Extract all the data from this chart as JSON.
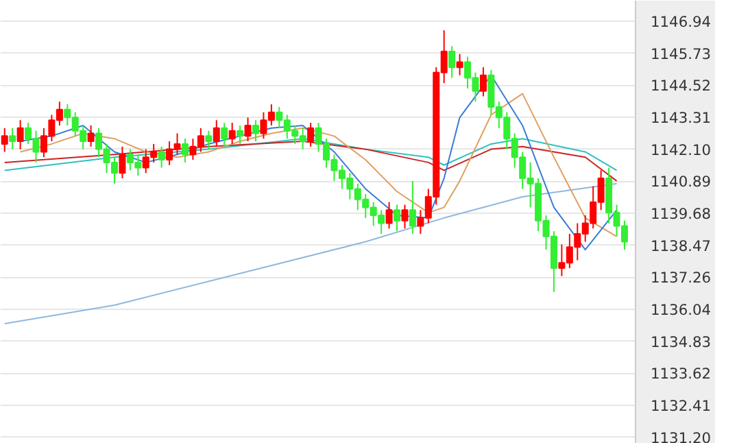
{
  "chart_data": {
    "type": "candlestick",
    "categories": [
      null,
      null,
      null,
      null,
      null,
      null,
      null,
      null,
      null,
      null,
      null,
      null,
      null,
      null,
      null,
      null,
      null,
      null,
      null,
      null,
      null,
      null,
      null,
      null,
      null,
      null,
      null,
      null,
      null,
      null,
      null,
      null,
      null,
      null,
      null,
      null,
      null,
      null,
      null,
      null,
      null,
      null,
      null,
      null,
      null,
      null,
      null,
      null,
      null,
      null,
      null,
      null,
      null,
      null,
      null,
      null,
      null,
      null,
      null,
      null,
      null,
      null,
      null,
      null,
      null,
      null,
      null,
      null,
      null,
      null,
      null,
      null,
      null,
      null,
      null,
      null,
      null,
      null,
      null,
      null
    ],
    "ohlc": [
      [
        1142.3,
        1142.9,
        1142.0,
        1142.6
      ],
      [
        1142.6,
        1142.9,
        1142.1,
        1142.4
      ],
      [
        1142.4,
        1143.2,
        1142.1,
        1142.9
      ],
      [
        1142.9,
        1143.1,
        1142.3,
        1142.5
      ],
      [
        1142.5,
        1142.8,
        1141.6,
        1142.0
      ],
      [
        1142.0,
        1142.9,
        1141.8,
        1142.6
      ],
      [
        1142.6,
        1143.4,
        1142.4,
        1143.2
      ],
      [
        1143.2,
        1143.9,
        1143.0,
        1143.6
      ],
      [
        1143.6,
        1143.8,
        1143.0,
        1143.3
      ],
      [
        1143.3,
        1143.5,
        1142.6,
        1142.8
      ],
      [
        1142.8,
        1143.0,
        1142.1,
        1142.4
      ],
      [
        1142.4,
        1143.0,
        1142.2,
        1142.7
      ],
      [
        1142.7,
        1142.9,
        1141.8,
        1142.1
      ],
      [
        1142.1,
        1142.3,
        1141.2,
        1141.6
      ],
      [
        1141.6,
        1141.8,
        1140.8,
        1141.2
      ],
      [
        1141.2,
        1142.2,
        1141.0,
        1141.9
      ],
      [
        1141.9,
        1142.1,
        1141.3,
        1141.6
      ],
      [
        1141.6,
        1141.9,
        1141.1,
        1141.4
      ],
      [
        1141.4,
        1142.1,
        1141.2,
        1141.8
      ],
      [
        1141.8,
        1142.3,
        1141.6,
        1142.0
      ],
      [
        1142.0,
        1142.2,
        1141.4,
        1141.7
      ],
      [
        1141.7,
        1142.4,
        1141.5,
        1142.1
      ],
      [
        1142.1,
        1142.7,
        1141.9,
        1142.3
      ],
      [
        1142.3,
        1142.5,
        1141.6,
        1141.9
      ],
      [
        1141.9,
        1142.5,
        1141.7,
        1142.2
      ],
      [
        1142.2,
        1142.9,
        1142.0,
        1142.6
      ],
      [
        1142.6,
        1142.8,
        1142.1,
        1142.4
      ],
      [
        1142.4,
        1143.2,
        1142.2,
        1142.9
      ],
      [
        1142.9,
        1143.1,
        1142.2,
        1142.5
      ],
      [
        1142.5,
        1143.1,
        1142.3,
        1142.8
      ],
      [
        1142.8,
        1143.0,
        1142.3,
        1142.6
      ],
      [
        1142.6,
        1143.3,
        1142.4,
        1143.0
      ],
      [
        1143.0,
        1143.2,
        1142.4,
        1142.7
      ],
      [
        1142.7,
        1143.5,
        1142.5,
        1143.2
      ],
      [
        1143.2,
        1143.8,
        1143.0,
        1143.5
      ],
      [
        1143.5,
        1143.7,
        1142.9,
        1143.2
      ],
      [
        1143.2,
        1143.4,
        1142.5,
        1142.8
      ],
      [
        1142.8,
        1143.0,
        1142.3,
        1142.6
      ],
      [
        1142.6,
        1142.9,
        1142.1,
        1142.4
      ],
      [
        1142.4,
        1143.1,
        1142.2,
        1142.9
      ],
      [
        1142.9,
        1143.1,
        1142.0,
        1142.3
      ],
      [
        1142.3,
        1142.5,
        1141.4,
        1141.7
      ],
      [
        1141.7,
        1141.9,
        1140.9,
        1141.3
      ],
      [
        1141.3,
        1141.5,
        1140.6,
        1141.0
      ],
      [
        1141.0,
        1141.2,
        1140.2,
        1140.6
      ],
      [
        1140.6,
        1140.8,
        1139.8,
        1140.2
      ],
      [
        1140.2,
        1140.4,
        1139.5,
        1139.9
      ],
      [
        1139.9,
        1140.1,
        1139.2,
        1139.6
      ],
      [
        1139.6,
        1139.8,
        1138.9,
        1139.3
      ],
      [
        1139.3,
        1140.1,
        1139.1,
        1139.8
      ],
      [
        1139.8,
        1140.0,
        1139.0,
        1139.4
      ],
      [
        1139.4,
        1140.0,
        1139.1,
        1139.8
      ],
      [
        1139.8,
        1140.9,
        1138.9,
        1139.2
      ],
      [
        1139.2,
        1139.8,
        1138.9,
        1139.5
      ],
      [
        1139.5,
        1140.6,
        1139.3,
        1140.3
      ],
      [
        1140.3,
        1145.2,
        1140.0,
        1145.0
      ],
      [
        1145.0,
        1146.6,
        1144.6,
        1145.8
      ],
      [
        1145.8,
        1146.0,
        1144.8,
        1145.2
      ],
      [
        1145.2,
        1145.7,
        1144.9,
        1145.4
      ],
      [
        1145.4,
        1145.6,
        1144.4,
        1144.8
      ],
      [
        1144.8,
        1145.0,
        1143.9,
        1144.3
      ],
      [
        1144.3,
        1145.2,
        1144.1,
        1144.9
      ],
      [
        1144.9,
        1145.1,
        1143.4,
        1143.7
      ],
      [
        1143.7,
        1143.9,
        1142.9,
        1143.3
      ],
      [
        1143.3,
        1143.5,
        1142.1,
        1142.5
      ],
      [
        1142.5,
        1142.7,
        1141.4,
        1141.8
      ],
      [
        1141.8,
        1142.0,
        1140.6,
        1141.0
      ],
      [
        1141.0,
        1141.6,
        1139.9,
        1140.8
      ],
      [
        1140.8,
        1141.0,
        1139.0,
        1139.4
      ],
      [
        1139.4,
        1139.6,
        1138.3,
        1138.8
      ],
      [
        1138.8,
        1139.0,
        1136.7,
        1137.6
      ],
      [
        1137.6,
        1138.5,
        1137.3,
        1137.8
      ],
      [
        1137.8,
        1138.9,
        1137.6,
        1138.4
      ],
      [
        1138.4,
        1139.3,
        1137.9,
        1138.9
      ],
      [
        1138.9,
        1139.6,
        1138.6,
        1139.3
      ],
      [
        1139.3,
        1140.7,
        1139.1,
        1140.1
      ],
      [
        1140.1,
        1141.3,
        1139.8,
        1141.0
      ],
      [
        1141.0,
        1141.4,
        1139.3,
        1139.7
      ],
      [
        1139.7,
        1140.0,
        1138.8,
        1139.2
      ],
      [
        1139.2,
        1139.4,
        1138.3,
        1138.6
      ]
    ],
    "colors": [
      "#ff0000",
      "#33ee33",
      "#ff0000",
      "#33ee33",
      "#33ee33",
      "#ff0000",
      "#ff0000",
      "#ff0000",
      "#33ee33",
      "#33ee33",
      "#33ee33",
      "#ff0000",
      "#33ee33",
      "#33ee33",
      "#33ee33",
      "#ff0000",
      "#33ee33",
      "#33ee33",
      "#ff0000",
      "#ff0000",
      "#33ee33",
      "#ff0000",
      "#ff0000",
      "#33ee33",
      "#ff0000",
      "#ff0000",
      "#33ee33",
      "#ff0000",
      "#33ee33",
      "#ff0000",
      "#33ee33",
      "#ff0000",
      "#33ee33",
      "#ff0000",
      "#ff0000",
      "#33ee33",
      "#33ee33",
      "#33ee33",
      "#33ee33",
      "#ff0000",
      "#33ee33",
      "#33ee33",
      "#33ee33",
      "#33ee33",
      "#33ee33",
      "#33ee33",
      "#33ee33",
      "#33ee33",
      "#33ee33",
      "#ff0000",
      "#33ee33",
      "#ff0000",
      "#33ee33",
      "#ff0000",
      "#ff0000",
      "#ff0000",
      "#ff0000",
      "#33ee33",
      "#ff0000",
      "#33ee33",
      "#33ee33",
      "#ff0000",
      "#33ee33",
      "#33ee33",
      "#33ee33",
      "#33ee33",
      "#33ee33",
      "#33ee33",
      "#33ee33",
      "#33ee33",
      "#33ee33",
      "#ff0000",
      "#ff0000",
      "#ff0000",
      "#ff0000",
      "#ff0000",
      "#ff0000",
      "#33ee33",
      "#33ee33",
      "#33ee33"
    ],
    "ylim": [
      1130.96,
      1147.72
    ],
    "yticks": [
      {
        "value": 1131.2,
        "label": "1131.20"
      },
      {
        "value": 1132.41,
        "label": "1132.41"
      },
      {
        "value": 1133.62,
        "label": "1133.62"
      },
      {
        "value": 1134.83,
        "label": "1134.83"
      },
      {
        "value": 1136.04,
        "label": "1136.04"
      },
      {
        "value": 1137.26,
        "label": "1137.26"
      },
      {
        "value": 1138.47,
        "label": "1138.47"
      },
      {
        "value": 1139.68,
        "label": "1139.68"
      },
      {
        "value": 1140.89,
        "label": "1140.89"
      },
      {
        "value": 1142.1,
        "label": "1142.10"
      },
      {
        "value": 1143.31,
        "label": "1143.31"
      },
      {
        "value": 1144.52,
        "label": "1144.52"
      },
      {
        "value": 1145.73,
        "label": "1145.73"
      },
      {
        "value": 1146.94,
        "label": "1146.94"
      }
    ],
    "grid": "y",
    "tick_labels": "y",
    "series": [
      {
        "type": "line",
        "color": "#8fb8e0",
        "values": [
          1135.5,
          null,
          null,
          null,
          null,
          null,
          null,
          null,
          null,
          null,
          null,
          null,
          null,
          null,
          1136.2,
          null,
          null,
          null,
          null,
          null,
          null,
          null,
          null,
          null,
          null,
          null,
          null,
          null,
          null,
          null,
          1137.4,
          null,
          null,
          null,
          null,
          null,
          null,
          null,
          null,
          null,
          null,
          null,
          null,
          null,
          null,
          null,
          1138.6,
          null,
          null,
          null,
          null,
          null,
          null,
          null,
          null,
          null,
          1139.5,
          null,
          null,
          null,
          null,
          null,
          null,
          null,
          null,
          null,
          1140.3,
          null,
          null,
          null,
          null,
          null,
          null,
          null,
          null,
          null,
          null,
          null,
          1140.8,
          null
        ]
      },
      {
        "type": "line",
        "color": "#2ec0c0",
        "values": [
          1141.3,
          null,
          null,
          null,
          null,
          null,
          null,
          null,
          null,
          null,
          null,
          null,
          null,
          null,
          1141.8,
          null,
          null,
          null,
          null,
          null,
          null,
          null,
          null,
          null,
          null,
          null,
          1142.1,
          null,
          null,
          null,
          null,
          null,
          null,
          null,
          null,
          null,
          null,
          null,
          1142.5,
          null,
          null,
          null,
          null,
          null,
          null,
          null,
          1142.1,
          null,
          null,
          null,
          null,
          null,
          null,
          null,
          1141.8,
          null,
          1141.5,
          null,
          null,
          null,
          null,
          null,
          1142.3,
          null,
          null,
          null,
          1142.5,
          null,
          null,
          null,
          null,
          null,
          null,
          null,
          1142.0,
          null,
          null,
          null,
          1141.3,
          null
        ]
      },
      {
        "type": "line",
        "color": "#cc2222",
        "values": [
          1141.6,
          null,
          null,
          null,
          null,
          null,
          null,
          null,
          null,
          null,
          null,
          null,
          null,
          null,
          1141.9,
          null,
          null,
          null,
          null,
          null,
          null,
          null,
          null,
          null,
          null,
          null,
          1142.2,
          null,
          null,
          null,
          null,
          null,
          null,
          null,
          null,
          null,
          null,
          null,
          1142.4,
          null,
          null,
          null,
          null,
          null,
          null,
          null,
          1142.1,
          null,
          null,
          null,
          null,
          null,
          null,
          null,
          1141.6,
          null,
          1141.3,
          null,
          null,
          null,
          null,
          null,
          1142.1,
          null,
          null,
          null,
          1142.2,
          null,
          null,
          null,
          null,
          null,
          null,
          null,
          1141.8,
          null,
          null,
          null,
          1140.9,
          null
        ]
      },
      {
        "type": "line",
        "color": "#e0a060",
        "values": [
          null,
          null,
          1142.0,
          null,
          null,
          null,
          1142.3,
          null,
          null,
          null,
          1142.7,
          null,
          null,
          null,
          1142.5,
          null,
          null,
          null,
          1142.0,
          null,
          null,
          null,
          1141.8,
          null,
          null,
          null,
          1142.0,
          null,
          null,
          null,
          1142.4,
          null,
          null,
          null,
          1142.7,
          null,
          null,
          null,
          1142.9,
          null,
          null,
          null,
          1142.6,
          null,
          null,
          null,
          1141.7,
          null,
          null,
          null,
          1140.5,
          null,
          null,
          null,
          1139.7,
          null,
          1139.9,
          null,
          1140.9,
          null,
          null,
          null,
          1143.4,
          null,
          null,
          null,
          1144.2,
          null,
          null,
          null,
          1141.8,
          null,
          null,
          null,
          1139.5,
          null,
          null,
          null,
          1138.8,
          null
        ]
      },
      {
        "type": "line",
        "color": "#3a7bd5",
        "values": [
          null,
          null,
          1142.4,
          null,
          null,
          null,
          1142.6,
          null,
          null,
          null,
          1143.0,
          null,
          null,
          null,
          1142.0,
          null,
          null,
          null,
          1141.6,
          null,
          null,
          null,
          1141.9,
          null,
          null,
          null,
          1142.3,
          null,
          null,
          null,
          1142.6,
          null,
          null,
          null,
          1142.9,
          null,
          null,
          null,
          1143.0,
          null,
          null,
          null,
          1142.0,
          null,
          null,
          null,
          1140.6,
          null,
          null,
          null,
          1139.6,
          null,
          null,
          null,
          1139.5,
          null,
          1141.0,
          null,
          1143.3,
          null,
          null,
          null,
          1144.9,
          null,
          null,
          null,
          1143.0,
          null,
          null,
          null,
          1139.9,
          null,
          null,
          null,
          1138.3,
          null,
          null,
          null,
          1139.8,
          null
        ]
      }
    ]
  }
}
